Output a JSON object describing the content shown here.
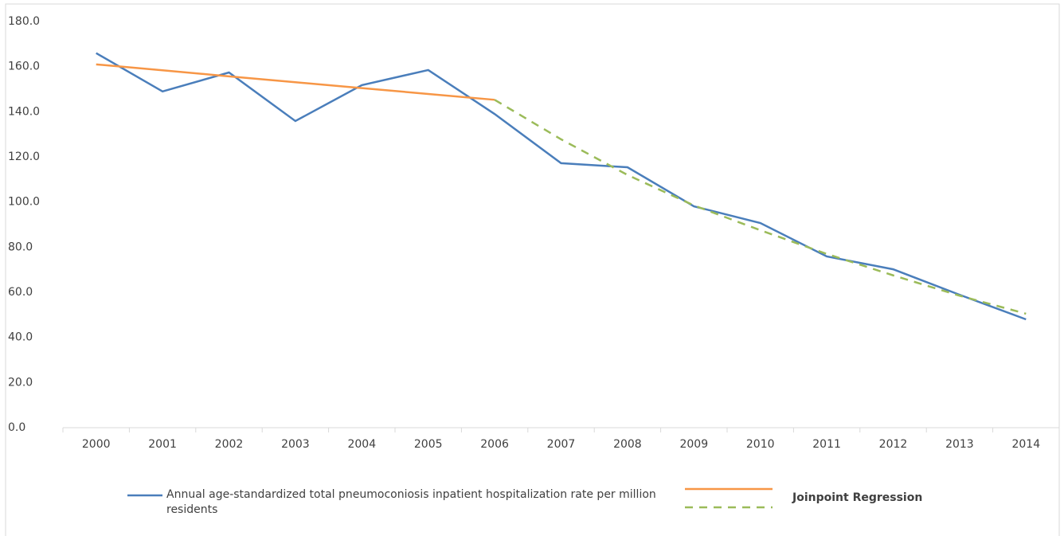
{
  "chart_data": {
    "type": "line",
    "categories": [
      "2000",
      "2001",
      "2002",
      "2003",
      "2004",
      "2005",
      "2006",
      "2007",
      "2008",
      "2009",
      "2010",
      "2011",
      "2012",
      "2013",
      "2014"
    ],
    "series": [
      {
        "name": "Annual age-standardized total pneumoconiosis inpatient hospitalization rate per million residents",
        "color": "#4a7ebb",
        "values": [
          166,
          149,
          157.4,
          135.9,
          151.8,
          158.5,
          139,
          117.2,
          115.4,
          98.1,
          90.7,
          75.9,
          70.2,
          58.9,
          48
        ]
      },
      {
        "name": "Joinpoint Regression",
        "color": "#f79646",
        "values": [
          161,
          158.4,
          155.7,
          153.1,
          150.5,
          147.9,
          145.3,
          null,
          null,
          null,
          null,
          null,
          null,
          null,
          null
        ]
      },
      {
        "color": "#9bbb59",
        "dashed": true,
        "values": [
          null,
          null,
          null,
          null,
          null,
          null,
          145.3,
          127.8,
          112,
          98.5,
          87.5,
          77,
          67.5,
          58.5,
          50.5
        ]
      }
    ],
    "ylim": [
      0,
      180
    ],
    "yticks": [
      {
        "value": 0,
        "label": "0.0"
      },
      {
        "value": 20,
        "label": "20.0"
      },
      {
        "value": 40,
        "label": "40.0"
      },
      {
        "value": 60,
        "label": "60.0"
      },
      {
        "value": 80,
        "label": "80.0"
      },
      {
        "value": 100,
        "label": "100.0"
      },
      {
        "value": 120,
        "label": "120.0"
      },
      {
        "value": 140,
        "label": "140.0"
      },
      {
        "value": 160,
        "label": "160.0"
      },
      {
        "value": 180,
        "label": "180.0"
      }
    ],
    "grid": false
  }
}
